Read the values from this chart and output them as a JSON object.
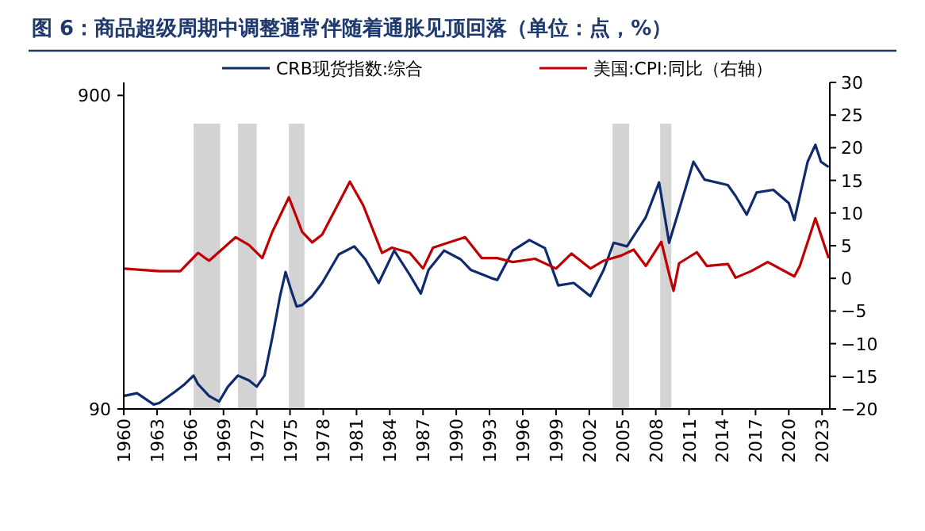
{
  "chart_data": {
    "type": "line",
    "title": "图 6：商品超级周期中调整通常伴随着通胀见顶回落（单位：点，%）",
    "xlim": [
      1960,
      2023.7
    ],
    "xticks": [
      1960,
      1963,
      1966,
      1969,
      1972,
      1975,
      1978,
      1981,
      1984,
      1987,
      1990,
      1993,
      1996,
      1999,
      2002,
      2005,
      2008,
      2011,
      2014,
      2017,
      2020,
      2023
    ],
    "ylim": [
      90,
      990
    ],
    "yticks": [
      90,
      900
    ],
    "log": "y",
    "y2lim": [
      -20,
      30
    ],
    "y2ticks": [
      -20,
      -15,
      -10,
      -5,
      0,
      5,
      10,
      15,
      20,
      25,
      30
    ],
    "legend": "top",
    "bands": [
      {
        "axis": "x",
        "from": 1966.3,
        "to": 1968.7,
        "color": "#d3d3d3"
      },
      {
        "axis": "x",
        "from": 1970.3,
        "to": 1972.0,
        "color": "#d3d3d3"
      },
      {
        "axis": "x",
        "from": 1974.9,
        "to": 1976.3,
        "color": "#d3d3d3"
      },
      {
        "axis": "x",
        "from": 2004.1,
        "to": 2005.6,
        "color": "#d3d3d3"
      },
      {
        "axis": "x",
        "from": 2008.4,
        "to": 2009.4,
        "color": "#d3d3d3"
      }
    ],
    "series": [
      {
        "name": "CRB现货指数:综合",
        "color": "#0f2b6e",
        "x": [
          1960.0,
          1961.2,
          1962.7,
          1963.2,
          1964.6,
          1965.5,
          1966.3,
          1966.7,
          1967.7,
          1968.6,
          1969.4,
          1970.3,
          1971.3,
          1972.0,
          1972.7,
          1973.4,
          1974.1,
          1974.6,
          1975.1,
          1975.6,
          1976.1,
          1977.0,
          1977.9,
          1979.4,
          1980.8,
          1981.8,
          1983.0,
          1984.4,
          1985.8,
          1986.8,
          1987.5,
          1988.9,
          1990.4,
          1991.3,
          1993.2,
          1993.7,
          1995.1,
          1996.6,
          1998.0,
          1999.2,
          2000.6,
          2002.1,
          2003.3,
          2004.2,
          2005.4,
          2007.1,
          2008.3,
          2009.2,
          2009.9,
          2011.4,
          2012.4,
          2014.5,
          2015.2,
          2016.2,
          2017.1,
          2018.6,
          2020.0,
          2020.5,
          2021.7,
          2022.4,
          2022.9,
          2023.6
        ],
        "values": [
          99,
          101,
          93,
          94,
          102,
          108,
          115,
          108,
          99,
          95,
          106,
          115,
          111,
          106,
          115,
          152,
          206,
          246,
          215,
          191,
          193,
          206,
          227,
          280,
          297,
          270,
          227,
          288,
          241,
          210,
          250,
          288,
          270,
          250,
          235,
          232,
          288,
          311,
          293,
          223,
          227,
          206,
          250,
          305,
          297,
          368,
          475,
          305,
          368,
          553,
          485,
          466,
          430,
          375,
          441,
          450,
          408,
          360,
          553,
          626,
          553,
          532
        ]
      },
      {
        "name": "美国:CPI:同比（右轴）",
        "color": "#c00000",
        "axis": "y2",
        "x": [
          1960.0,
          1963.2,
          1965.1,
          1966.7,
          1967.7,
          1970.1,
          1971.3,
          1972.5,
          1973.4,
          1974.9,
          1976.1,
          1977.0,
          1977.9,
          1980.4,
          1981.6,
          1983.3,
          1984.2,
          1985.8,
          1987.0,
          1987.9,
          1990.8,
          1992.3,
          1993.7,
          1995.1,
          1997.1,
          1999.0,
          2000.4,
          2002.1,
          2003.3,
          2004.9,
          2006.0,
          2007.1,
          2008.5,
          2009.2,
          2009.6,
          2010.1,
          2011.7,
          2012.6,
          2014.5,
          2015.2,
          2016.6,
          2018.1,
          2020.5,
          2021.0,
          2022.4,
          2023.6
        ],
        "values": [
          1.5,
          1.1,
          1.1,
          3.9,
          2.7,
          6.3,
          5.1,
          3.1,
          7.1,
          12.4,
          7.1,
          5.5,
          6.7,
          14.8,
          11.2,
          3.9,
          4.7,
          3.9,
          1.5,
          4.7,
          6.3,
          3.1,
          3.1,
          2.5,
          3.0,
          1.5,
          3.8,
          1.5,
          2.7,
          3.5,
          4.4,
          1.9,
          5.6,
          0.7,
          -1.9,
          2.3,
          4.0,
          1.9,
          2.2,
          0.1,
          1.1,
          2.5,
          0.3,
          1.9,
          9.2,
          3.1
        ]
      }
    ]
  }
}
